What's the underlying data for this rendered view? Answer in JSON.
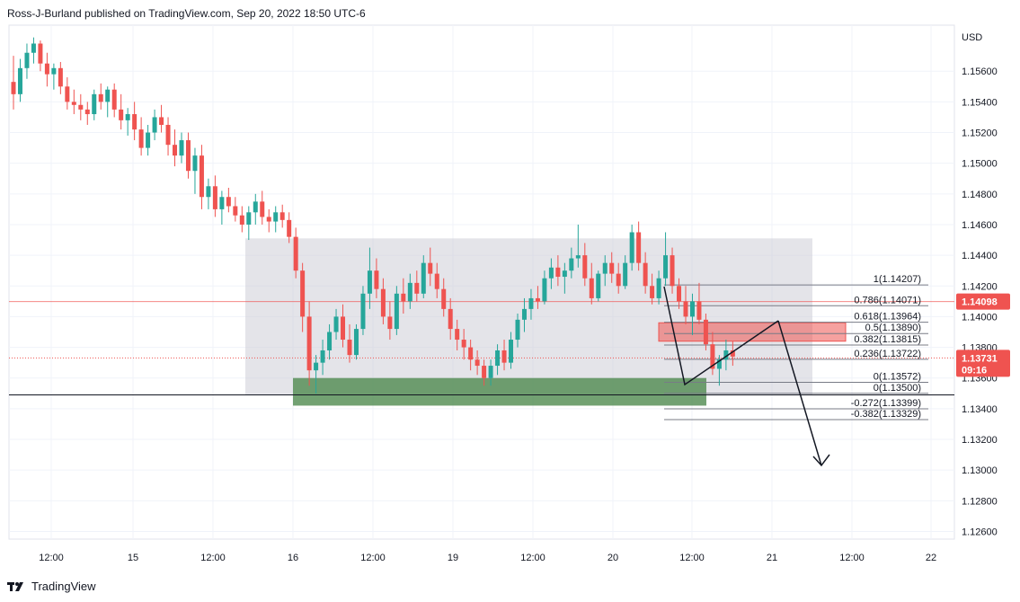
{
  "header": {
    "attribution": "Ross-J-Burland published on TradingView.com, Sep 20, 2022 18:50 UTC-6"
  },
  "footer": {
    "logo_text": "TradingView",
    "logo_icon": "tradingview-logo-icon"
  },
  "colors": {
    "up": "#26a69a",
    "down": "#ef5350",
    "range_box": "#c9cad4",
    "support_zone": "#4f8a4f",
    "resistance_zone": "#ef5350",
    "price_badge": "#ef5350",
    "fib_line": "#787b86",
    "grid": "#f0f3fa"
  },
  "chart_data": {
    "type": "candlestick",
    "symbol_axis_label": "USD",
    "ylim": [
      1.1255,
      1.159
    ],
    "y_ticks": [
      "1.15600",
      "1.15400",
      "1.15200",
      "1.15000",
      "1.14800",
      "1.14600",
      "1.14400",
      "1.14200",
      "1.14000",
      "1.13800",
      "1.13600",
      "1.13400",
      "1.13200",
      "1.13000",
      "1.12800",
      "1.12600"
    ],
    "x_ticks": [
      "12:00",
      "15",
      "12:00",
      "16",
      "12:00",
      "19",
      "12:00",
      "20",
      "12:00",
      "21",
      "12:00",
      "22"
    ],
    "last_price": "1.13731",
    "countdown": "09:16",
    "marked_price": "1.14098",
    "fib_levels": [
      {
        "label": "1(1.14207)",
        "value": 1.14207
      },
      {
        "label": "0.786(1.14071)",
        "value": 1.14071
      },
      {
        "label": "0.618(1.13964)",
        "value": 1.13964
      },
      {
        "label": "0.5(1.13890)",
        "value": 1.1389
      },
      {
        "label": "0.382(1.13815)",
        "value": 1.13815
      },
      {
        "label": "0.236(1.13722)",
        "value": 1.13722
      },
      {
        "label": "0(1.13572)",
        "value": 1.13572
      },
      {
        "label": "0(1.13500)",
        "value": 1.135
      },
      {
        "label": "-0.272(1.13399)",
        "value": 1.13399
      },
      {
        "label": "-0.382(1.13329)",
        "value": 1.13329
      }
    ],
    "range_box": {
      "top": 1.1451,
      "bottom": 1.1349
    },
    "support_zone": {
      "top": 1.136,
      "bottom": 1.1342
    },
    "resistance_zone": {
      "top": 1.1396,
      "bottom": 1.1384
    },
    "horizontal_lines": [
      1.14098,
      1.1349
    ],
    "candles": [
      [
        1.1553,
        1.157,
        1.1535,
        1.1545
      ],
      [
        1.1545,
        1.1568,
        1.154,
        1.1562
      ],
      [
        1.1562,
        1.1578,
        1.1555,
        1.1572
      ],
      [
        1.1572,
        1.1582,
        1.1565,
        1.1578
      ],
      [
        1.1578,
        1.158,
        1.156,
        1.1565
      ],
      [
        1.1565,
        1.1572,
        1.155,
        1.1558
      ],
      [
        1.1558,
        1.1565,
        1.1548,
        1.1562
      ],
      [
        1.1562,
        1.1566,
        1.1545,
        1.155
      ],
      [
        1.155,
        1.1556,
        1.1535,
        1.154
      ],
      [
        1.154,
        1.1548,
        1.1532,
        1.1538
      ],
      [
        1.1538,
        1.1545,
        1.1528,
        1.1535
      ],
      [
        1.1535,
        1.154,
        1.1525,
        1.1532
      ],
      [
        1.1532,
        1.1548,
        1.1528,
        1.1545
      ],
      [
        1.1545,
        1.1552,
        1.1535,
        1.154
      ],
      [
        1.154,
        1.155,
        1.153,
        1.1548
      ],
      [
        1.1548,
        1.1552,
        1.153,
        1.1535
      ],
      [
        1.1535,
        1.1545,
        1.1522,
        1.1528
      ],
      [
        1.1528,
        1.1536,
        1.1518,
        1.1532
      ],
      [
        1.1532,
        1.154,
        1.1515,
        1.1522
      ],
      [
        1.1522,
        1.153,
        1.1505,
        1.151
      ],
      [
        1.151,
        1.1525,
        1.1505,
        1.152
      ],
      [
        1.152,
        1.1535,
        1.1515,
        1.153
      ],
      [
        1.153,
        1.1538,
        1.152,
        1.1525
      ],
      [
        1.1525,
        1.153,
        1.1505,
        1.1512
      ],
      [
        1.1512,
        1.1522,
        1.1498,
        1.1505
      ],
      [
        1.1505,
        1.152,
        1.15,
        1.1515
      ],
      [
        1.1515,
        1.152,
        1.149,
        1.1495
      ],
      [
        1.1495,
        1.151,
        1.148,
        1.1505
      ],
      [
        1.1505,
        1.1512,
        1.147,
        1.1478
      ],
      [
        1.1478,
        1.149,
        1.147,
        1.1485
      ],
      [
        1.1485,
        1.1492,
        1.1465,
        1.147
      ],
      [
        1.147,
        1.1482,
        1.146,
        1.1478
      ],
      [
        1.1478,
        1.1484,
        1.1468,
        1.1472
      ],
      [
        1.1472,
        1.1478,
        1.1462,
        1.1466
      ],
      [
        1.1466,
        1.1472,
        1.1455,
        1.146
      ],
      [
        1.146,
        1.1472,
        1.145,
        1.1468
      ],
      [
        1.1468,
        1.148,
        1.146,
        1.1475
      ],
      [
        1.1475,
        1.1482,
        1.146,
        1.1465
      ],
      [
        1.1465,
        1.147,
        1.1455,
        1.1462
      ],
      [
        1.1462,
        1.1472,
        1.1455,
        1.1468
      ],
      [
        1.1468,
        1.1473,
        1.1458,
        1.1463
      ],
      [
        1.1463,
        1.1468,
        1.1448,
        1.1452
      ],
      [
        1.1452,
        1.1458,
        1.1425,
        1.143
      ],
      [
        1.143,
        1.1435,
        1.139,
        1.14
      ],
      [
        1.14,
        1.141,
        1.1355,
        1.1365
      ],
      [
        1.1365,
        1.1375,
        1.135,
        1.137
      ],
      [
        1.137,
        1.1385,
        1.1362,
        1.1378
      ],
      [
        1.1378,
        1.1395,
        1.1372,
        1.139
      ],
      [
        1.139,
        1.1405,
        1.1385,
        1.14
      ],
      [
        1.14,
        1.1408,
        1.138,
        1.1385
      ],
      [
        1.1385,
        1.1395,
        1.137,
        1.1375
      ],
      [
        1.1375,
        1.1395,
        1.1372,
        1.1392
      ],
      [
        1.1392,
        1.142,
        1.1388,
        1.1415
      ],
      [
        1.1415,
        1.1445,
        1.1405,
        1.143
      ],
      [
        1.143,
        1.1438,
        1.1412,
        1.1418
      ],
      [
        1.1418,
        1.1425,
        1.1395,
        1.14
      ],
      [
        1.14,
        1.141,
        1.1385,
        1.1392
      ],
      [
        1.1392,
        1.142,
        1.1388,
        1.1415
      ],
      [
        1.1415,
        1.1425,
        1.1402,
        1.141
      ],
      [
        1.141,
        1.1428,
        1.1405,
        1.1422
      ],
      [
        1.1422,
        1.143,
        1.141,
        1.1415
      ],
      [
        1.1415,
        1.144,
        1.1412,
        1.1435
      ],
      [
        1.1435,
        1.1445,
        1.142,
        1.1428
      ],
      [
        1.1428,
        1.1435,
        1.1412,
        1.1418
      ],
      [
        1.1418,
        1.1425,
        1.14,
        1.1405
      ],
      [
        1.1405,
        1.1412,
        1.1385,
        1.1392
      ],
      [
        1.1392,
        1.1398,
        1.1378,
        1.1385
      ],
      [
        1.1385,
        1.1392,
        1.1372,
        1.138
      ],
      [
        1.138,
        1.1385,
        1.1365,
        1.1372
      ],
      [
        1.1372,
        1.1378,
        1.1362,
        1.1368
      ],
      [
        1.1368,
        1.1372,
        1.1355,
        1.136
      ],
      [
        1.136,
        1.1372,
        1.1355,
        1.1368
      ],
      [
        1.1368,
        1.1382,
        1.1362,
        1.1378
      ],
      [
        1.1378,
        1.1385,
        1.1365,
        1.137
      ],
      [
        1.137,
        1.139,
        1.1366,
        1.1385
      ],
      [
        1.1385,
        1.1402,
        1.138,
        1.1398
      ],
      [
        1.1398,
        1.1412,
        1.139,
        1.1405
      ],
      [
        1.1405,
        1.1418,
        1.1398,
        1.1412
      ],
      [
        1.1412,
        1.142,
        1.1405,
        1.141
      ],
      [
        1.141,
        1.143,
        1.1408,
        1.1425
      ],
      [
        1.1425,
        1.1438,
        1.1418,
        1.1432
      ],
      [
        1.1432,
        1.144,
        1.142,
        1.1426
      ],
      [
        1.1426,
        1.1435,
        1.1415,
        1.143
      ],
      [
        1.143,
        1.1445,
        1.1425,
        1.1438
      ],
      [
        1.1438,
        1.146,
        1.1432,
        1.144
      ],
      [
        1.144,
        1.1448,
        1.142,
        1.1425
      ],
      [
        1.1425,
        1.1435,
        1.1408,
        1.1412
      ],
      [
        1.1412,
        1.143,
        1.141,
        1.1428
      ],
      [
        1.1428,
        1.144,
        1.142,
        1.1435
      ],
      [
        1.1435,
        1.1442,
        1.1422,
        1.1428
      ],
      [
        1.1428,
        1.1435,
        1.1415,
        1.142
      ],
      [
        1.142,
        1.144,
        1.1418,
        1.1435
      ],
      [
        1.1435,
        1.146,
        1.143,
        1.1455
      ],
      [
        1.1455,
        1.1462,
        1.143,
        1.1435
      ],
      [
        1.1435,
        1.1442,
        1.1415,
        1.142
      ],
      [
        1.142,
        1.1428,
        1.1408,
        1.1412
      ],
      [
        1.1412,
        1.143,
        1.1408,
        1.1425
      ],
      [
        1.1425,
        1.1455,
        1.142,
        1.144
      ],
      [
        1.144,
        1.1445,
        1.1415,
        1.142
      ],
      [
        1.142,
        1.1425,
        1.1405,
        1.141
      ],
      [
        1.141,
        1.142,
        1.1395,
        1.14
      ],
      [
        1.14,
        1.1415,
        1.1388,
        1.141
      ],
      [
        1.141,
        1.1422,
        1.1395,
        1.1398
      ],
      [
        1.1398,
        1.1402,
        1.1378,
        1.1382
      ],
      [
        1.1382,
        1.139,
        1.1362,
        1.1366
      ],
      [
        1.1366,
        1.1375,
        1.1355,
        1.1372
      ],
      [
        1.1372,
        1.1385,
        1.1365,
        1.1378
      ],
      [
        1.1378,
        1.1384,
        1.1368,
        1.1374
      ]
    ]
  }
}
